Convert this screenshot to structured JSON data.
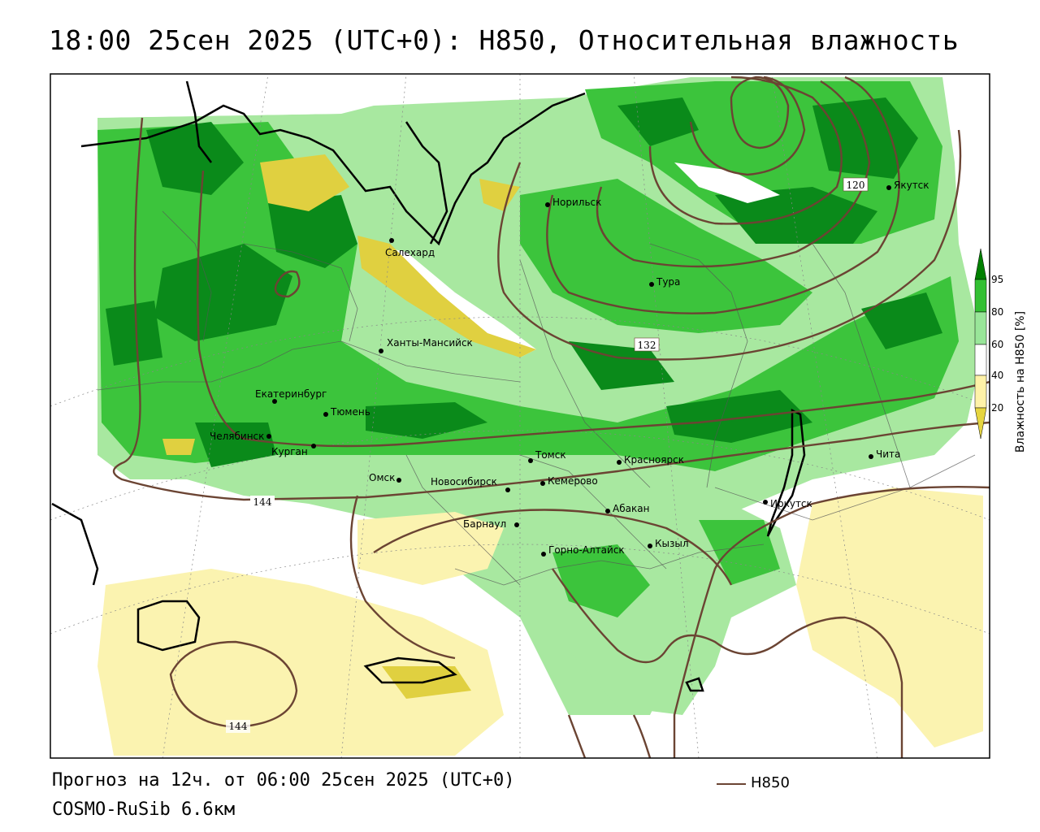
{
  "title": "18:00 25сен 2025 (UTC+0): H850, Относительная влажность",
  "footer": {
    "forecast": "Прогноз на 12ч. от 06:00 25сен 2025 (UTC+0)",
    "model": "COSMO-RuSib 6.6км",
    "legend_label": "H850"
  },
  "colorbar": {
    "title": "Влажность на H850 [%]",
    "ticks": [
      "95",
      "80",
      "60",
      "40",
      "20"
    ],
    "colors": [
      "#008000",
      "#33c033",
      "#99e699",
      "#ffffff",
      "#fff2a8",
      "#e6d540"
    ]
  },
  "contour_labels": [
    "120",
    "132",
    "144",
    "144"
  ],
  "cities": [
    "Норильск",
    "Якутск",
    "Салехард",
    "Тура",
    "Ханты-Мансийск",
    "Екатеринбург",
    "Тюмень",
    "Челябинск",
    "Курган",
    "Омск",
    "Томск",
    "Красноярск",
    "Чита",
    "Новосибирск",
    "Кемерово",
    "Абакан",
    "Иркутск",
    "Барнаул",
    "Горно-Алтайск",
    "Кызыл"
  ],
  "colors": {
    "contour": "#6b4433",
    "dark_green": "#0a8a1a",
    "mid_green": "#3cc43c",
    "light_green": "#a8e8a0",
    "light_yellow": "#fbf3b0",
    "dark_yellow": "#e0d040"
  }
}
